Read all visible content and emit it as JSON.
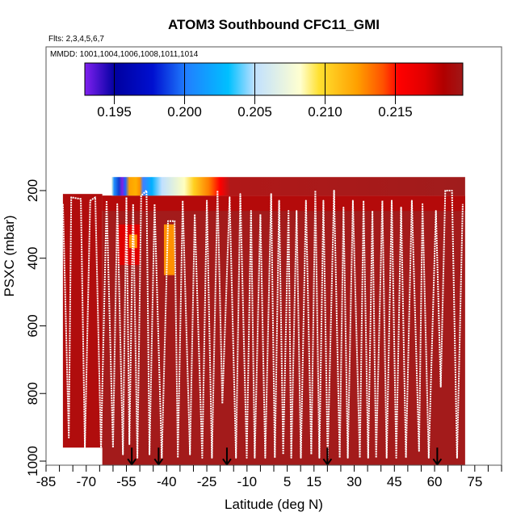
{
  "chart_data": {
    "type": "heatmap",
    "title": "ATOM3 Southbound CFC11_GMI",
    "subtitle": "Flts: 2,3,4,5,6,7",
    "annotation": "MMDD: 1001,1004,1006,1008,1011,1014",
    "xlabel": "Latitude (deg N)",
    "ylabel": "PSXC (mbar)",
    "xlim": [
      -85,
      85
    ],
    "ylim": [
      1012,
      -225
    ],
    "x_tick_step": 5,
    "x_tick_labels": [
      "-85",
      "-70",
      "-55",
      "-40",
      "-25",
      "-10",
      "5",
      "15",
      "30",
      "45",
      "60",
      "75"
    ],
    "x_tick_label_values": [
      -85,
      -70,
      -55,
      -40,
      -25,
      -10,
      5,
      15,
      30,
      45,
      60,
      75
    ],
    "y_ticks": [
      200,
      400,
      600,
      800,
      1000
    ],
    "colorbar": {
      "range": [
        0.1929,
        0.2198
      ],
      "ticks": [
        "0.195",
        "0.200",
        "0.205",
        "0.210",
        "0.215"
      ],
      "tick_values": [
        0.195,
        0.2,
        0.205,
        0.21,
        0.215
      ],
      "stops": [
        [
          0.0,
          "#8020f0"
        ],
        [
          0.08,
          "#0000a0"
        ],
        [
          0.18,
          "#0010d0"
        ],
        [
          0.27,
          "#2080ff"
        ],
        [
          0.38,
          "#00c0ff"
        ],
        [
          0.45,
          "#c0e0ff"
        ],
        [
          0.57,
          "#ffffd0"
        ],
        [
          0.62,
          "#ffe030"
        ],
        [
          0.72,
          "#ffa000"
        ],
        [
          0.79,
          "#ff5000"
        ],
        [
          0.83,
          "#ff0000"
        ],
        [
          0.9,
          "#e00000"
        ],
        [
          0.95,
          "#b00000"
        ],
        [
          1.0,
          "#a01818"
        ]
      ]
    },
    "field": [
      {
        "lat": [
          -78.7,
          -64.0
        ],
        "p": [
          210,
          960
        ],
        "color": "#b00d0d"
      },
      {
        "lat": [
          -64.0,
          71.4
        ],
        "p": [
          215,
          1012
        ],
        "color": "#a31b1b"
      },
      {
        "lat": [
          -64.0,
          71.4
        ],
        "p": [
          215,
          260
        ],
        "color": "#b40a0a"
      },
      {
        "lat": [
          -58,
          -50
        ],
        "p": [
          300,
          420
        ],
        "color": "#e00000"
      },
      {
        "lat": [
          -54,
          -51
        ],
        "p": [
          330,
          370
        ],
        "color": "#ff9000"
      },
      {
        "lat": [
          -41,
          -37
        ],
        "p": [
          300,
          450
        ],
        "color": "#ff9000"
      }
    ],
    "top_strip": {
      "p": [
        160,
        215
      ],
      "stops": [
        [
          -60.5,
          "#e0f0e0"
        ],
        [
          -59.6,
          "#2090ff"
        ],
        [
          -57.8,
          "#1040d0"
        ],
        [
          -56.6,
          "#8020e0"
        ],
        [
          -55.4,
          "#2060ff"
        ],
        [
          -53.9,
          "#ffa000"
        ],
        [
          -51.5,
          "#ffb000"
        ],
        [
          -50.0,
          "#ff9000"
        ],
        [
          -48.8,
          "#4080ff"
        ],
        [
          -45.5,
          "#00b0ff"
        ],
        [
          -41.8,
          "#c0e0ff"
        ],
        [
          -33.4,
          "#ffffc0"
        ],
        [
          -29.8,
          "#ffd020"
        ],
        [
          -24.3,
          "#ff8000"
        ],
        [
          -20.1,
          "#ff0000"
        ],
        [
          -16.2,
          "#b01818"
        ],
        [
          71.4,
          "#a01c1c"
        ]
      ]
    },
    "flight_track": [
      [
        -78.7,
        240
      ],
      [
        -76.5,
        930
      ],
      [
        -75.6,
        220
      ],
      [
        -72.0,
        225
      ],
      [
        -70.5,
        960
      ],
      [
        -68.5,
        230
      ],
      [
        -66.6,
        220
      ],
      [
        -64.5,
        960
      ],
      [
        -62.4,
        230
      ],
      [
        -60.0,
        960
      ],
      [
        -58.4,
        240
      ],
      [
        -56.3,
        980
      ],
      [
        -55.0,
        220
      ],
      [
        -53.9,
        950
      ],
      [
        -52.5,
        240
      ],
      [
        -50.9,
        990
      ],
      [
        -49.5,
        215
      ],
      [
        -47.5,
        200
      ],
      [
        -46.4,
        980
      ],
      [
        -44.5,
        240
      ],
      [
        -41.8,
        990
      ],
      [
        -39.5,
        290
      ],
      [
        -37.0,
        290
      ],
      [
        -35.8,
        990
      ],
      [
        -34.0,
        230
      ],
      [
        -31.3,
        980
      ],
      [
        -29.5,
        270
      ],
      [
        -26.7,
        990
      ],
      [
        -25.0,
        230
      ],
      [
        -23.1,
        990
      ],
      [
        -21.0,
        200
      ],
      [
        -19.2,
        830
      ],
      [
        -16.5,
        220
      ],
      [
        -14.1,
        990
      ],
      [
        -12.5,
        210
      ],
      [
        -10.1,
        990
      ],
      [
        -8.5,
        260
      ],
      [
        -7.1,
        990
      ],
      [
        -5.0,
        270
      ],
      [
        -3.2,
        990
      ],
      [
        -1.0,
        210
      ],
      [
        0.4,
        990
      ],
      [
        2.0,
        230
      ],
      [
        3.5,
        980
      ],
      [
        5.5,
        260
      ],
      [
        6.5,
        990
      ],
      [
        8.5,
        260
      ],
      [
        10.1,
        990
      ],
      [
        12.0,
        230
      ],
      [
        14.0,
        980
      ],
      [
        15.5,
        200
      ],
      [
        17.0,
        990
      ],
      [
        18.5,
        230
      ],
      [
        20.1,
        990
      ],
      [
        22.5,
        200
      ],
      [
        24.6,
        990
      ],
      [
        26.0,
        250
      ],
      [
        27.6,
        990
      ],
      [
        29.5,
        230
      ],
      [
        32.1,
        990
      ],
      [
        33.5,
        230
      ],
      [
        35.2,
        990
      ],
      [
        36.8,
        260
      ],
      [
        38.2,
        990
      ],
      [
        40.5,
        230
      ],
      [
        42.1,
        990
      ],
      [
        44.0,
        230
      ],
      [
        45.7,
        990
      ],
      [
        47.5,
        250
      ],
      [
        49.3,
        990
      ],
      [
        51.5,
        230
      ],
      [
        54.2,
        970
      ],
      [
        55.5,
        240
      ],
      [
        57.8,
        990
      ],
      [
        60.5,
        260
      ],
      [
        62.3,
        780
      ],
      [
        64.0,
        200
      ],
      [
        66.5,
        200
      ],
      [
        68.4,
        990
      ],
      [
        70.5,
        240
      ]
    ],
    "arrows_lat": [
      -53,
      -43,
      -17.5,
      20,
      61
    ]
  }
}
